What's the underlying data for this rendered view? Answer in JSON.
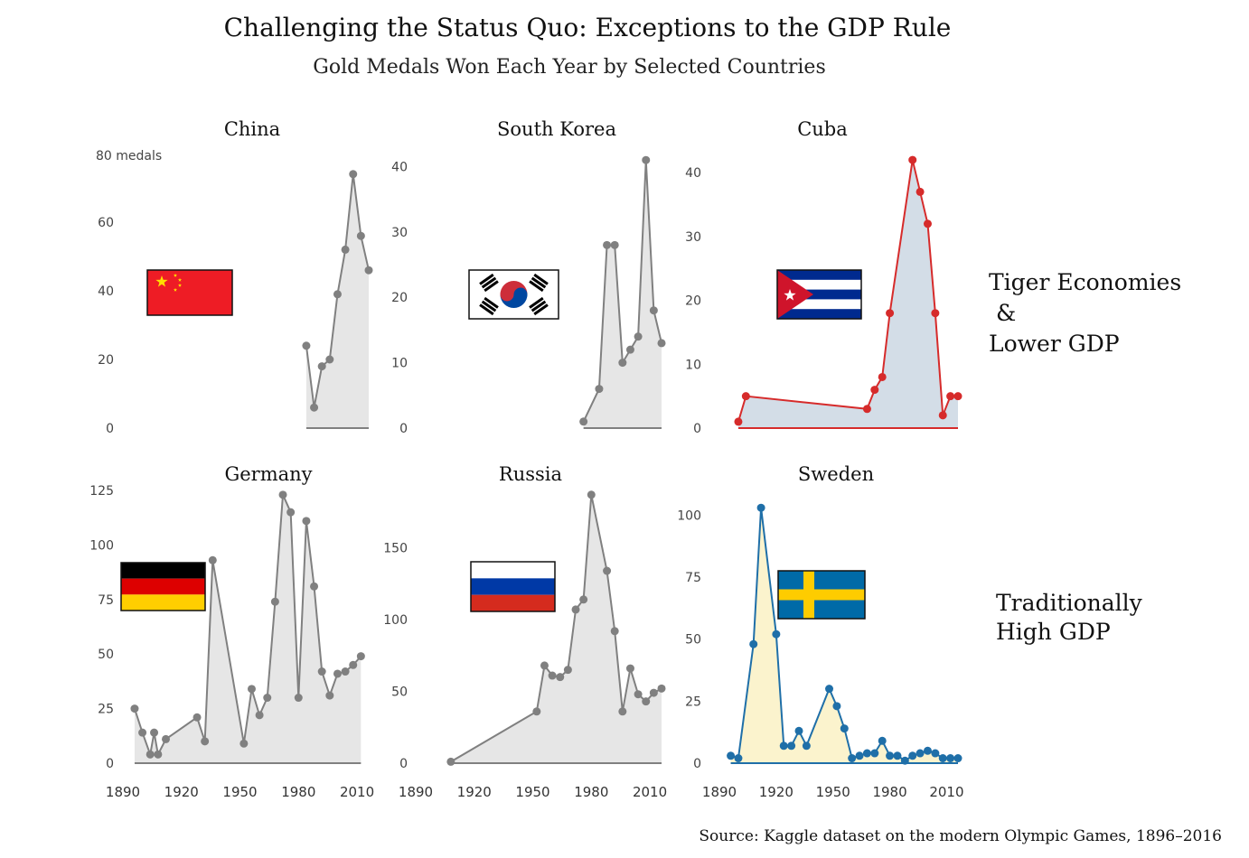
{
  "header": {
    "title": "Challenging the Status Quo: Exceptions to the GDP Rule",
    "subtitle": "Gold Medals Won Each Year by Selected Countries"
  },
  "source": "Source: Kaggle dataset on the modern Olympic Games, 1896–2016",
  "group_labels": {
    "tiger": [
      "Tiger Economies",
      " &",
      "Lower GDP"
    ],
    "traditional": [
      "Traditionally",
      "High GDP"
    ]
  },
  "chart_data": [
    {
      "type": "area",
      "title": "China",
      "flag": "china-flag",
      "color": "#808080",
      "fill": "#e6e6e6",
      "y_unit_label": "80 medals",
      "yticks": [
        0,
        20,
        40,
        60
      ],
      "ylim": [
        0,
        80
      ],
      "xlim": [
        1890,
        2016
      ],
      "x": [
        1984,
        1988,
        1992,
        1996,
        2000,
        2004,
        2008,
        2012,
        2016
      ],
      "y": [
        24,
        6,
        18,
        20,
        39,
        52,
        74,
        56,
        46
      ]
    },
    {
      "type": "area",
      "title": "South Korea",
      "flag": "south-korea-flag",
      "color": "#808080",
      "fill": "#e6e6e6",
      "yticks": [
        0,
        10,
        20,
        30,
        40
      ],
      "ylim": [
        0,
        42
      ],
      "xlim": [
        1890,
        2016
      ],
      "x": [
        1976,
        1984,
        1988,
        1992,
        1996,
        2000,
        2004,
        2008,
        2012,
        2016
      ],
      "y": [
        1,
        6,
        28,
        28,
        10,
        12,
        14,
        41,
        18,
        13
      ]
    },
    {
      "type": "area",
      "title": "Cuba",
      "flag": "cuba-flag",
      "color": "#d62b2b",
      "fill": "#d3dde7",
      "yticks": [
        0,
        10,
        20,
        30,
        40
      ],
      "ylim": [
        0,
        43
      ],
      "xlim": [
        1890,
        2016
      ],
      "x": [
        1900,
        1904,
        1968,
        1972,
        1976,
        1980,
        1992,
        1996,
        2000,
        2004,
        2008,
        2012,
        2016
      ],
      "y": [
        1,
        5,
        3,
        6,
        8,
        18,
        42,
        37,
        32,
        18,
        2,
        5,
        5
      ]
    },
    {
      "type": "area",
      "title": "Germany",
      "flag": "germany-flag",
      "color": "#808080",
      "fill": "#e6e6e6",
      "yticks": [
        0,
        25,
        50,
        75,
        100,
        125
      ],
      "ylim": [
        0,
        125
      ],
      "xlim": [
        1890,
        2016
      ],
      "xticks": [
        1890,
        1920,
        1950,
        1980,
        2010
      ],
      "x": [
        1896,
        1900,
        1904,
        1906,
        1908,
        1912,
        1928,
        1932,
        1936,
        1952,
        1956,
        1960,
        1964,
        1968,
        1972,
        1976,
        1980,
        1984,
        1988,
        1992,
        1996,
        2000,
        2004,
        2008,
        2012
      ],
      "y": [
        25,
        14,
        4,
        14,
        4,
        11,
        21,
        10,
        93,
        9,
        34,
        22,
        30,
        74,
        123,
        115,
        30,
        111,
        81,
        42,
        31,
        41,
        42,
        45,
        49
      ]
    },
    {
      "type": "area",
      "title": "Russia",
      "flag": "russia-flag",
      "color": "#808080",
      "fill": "#e6e6e6",
      "yticks": [
        0,
        50,
        100,
        150
      ],
      "ylim": [
        0,
        190
      ],
      "xlim": [
        1890,
        2016
      ],
      "xticks": [
        1890,
        1920,
        1950,
        1980,
        2010
      ],
      "x": [
        1908,
        1952,
        1956,
        1960,
        1964,
        1968,
        1972,
        1976,
        1980,
        1988,
        1992,
        1996,
        2000,
        2004,
        2008,
        2012,
        2016
      ],
      "y": [
        1,
        36,
        68,
        61,
        60,
        65,
        107,
        114,
        187,
        134,
        92,
        36,
        66,
        48,
        43,
        49,
        52
      ]
    },
    {
      "type": "area",
      "title": "Sweden",
      "flag": "sweden-flag",
      "color": "#1f6fa8",
      "fill": "#fbf3cd",
      "yticks": [
        0,
        25,
        50,
        75,
        100
      ],
      "ylim": [
        0,
        110
      ],
      "xlim": [
        1890,
        2016
      ],
      "xticks": [
        1890,
        1920,
        1950,
        1980,
        2010
      ],
      "x": [
        1896,
        1900,
        1908,
        1912,
        1920,
        1924,
        1928,
        1932,
        1936,
        1948,
        1952,
        1956,
        1960,
        1964,
        1968,
        1972,
        1976,
        1980,
        1984,
        1988,
        1992,
        1996,
        2000,
        2004,
        2008,
        2012,
        2016
      ],
      "y": [
        3,
        2,
        48,
        103,
        52,
        7,
        7,
        13,
        7,
        30,
        23,
        14,
        2,
        3,
        4,
        4,
        9,
        3,
        3,
        1,
        3,
        4,
        5,
        4,
        2,
        2,
        2
      ]
    }
  ]
}
